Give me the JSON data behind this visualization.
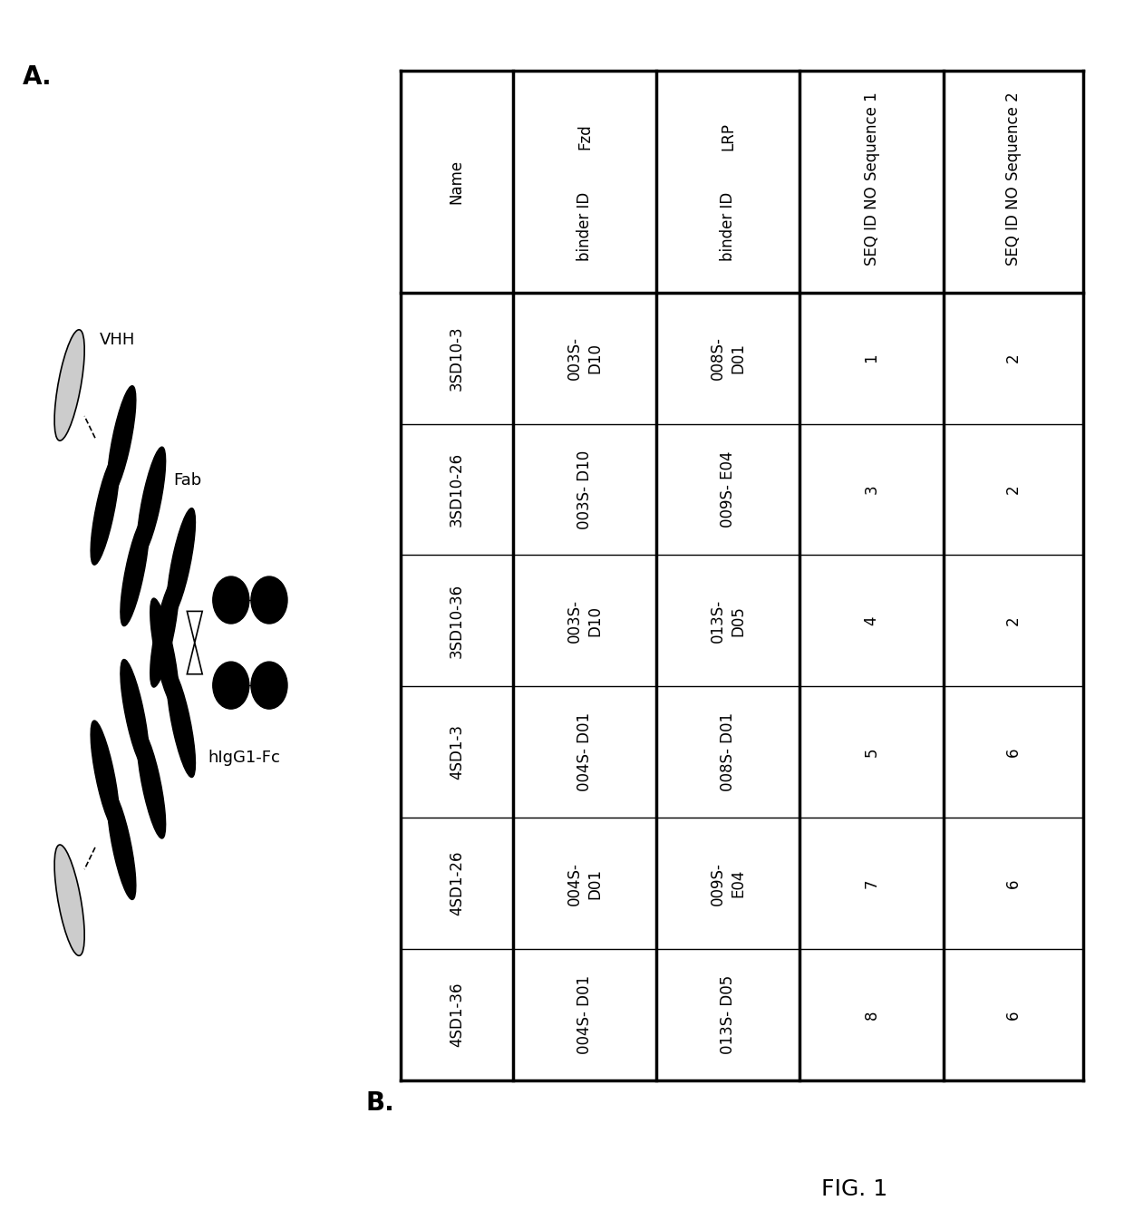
{
  "fig_label_A": "A.",
  "fig_label_B": "B.",
  "fig_caption": "FIG. 1",
  "table": {
    "col_headers_line1": [
      "Name",
      "Fzd",
      "LRP",
      "Sequence 1",
      "Sequence 2"
    ],
    "col_headers_line2": [
      "",
      "binder ID",
      "binder ID",
      "SEQ ID NO",
      "SEQ ID NO"
    ],
    "rows": [
      [
        "3SD10-3",
        "003S-\nD10",
        "008S-\nD01",
        "1",
        "2"
      ],
      [
        "3SD10-26",
        "003S- D10",
        "009S- E04",
        "3",
        "2"
      ],
      [
        "3SD10-36",
        "003S-\nD10",
        "013S-\nD05",
        "4",
        "2"
      ],
      [
        "4SD1-3",
        "004S- D01",
        "008S- D01",
        "5",
        "6"
      ],
      [
        "4SD1-26",
        "004S-\nD01",
        "009S-\nE04",
        "7",
        "6"
      ],
      [
        "4SD1-36",
        "004S- D01",
        "013S- D05",
        "8",
        "6"
      ]
    ]
  },
  "bg_color": "#ffffff",
  "text_color": "#000000"
}
